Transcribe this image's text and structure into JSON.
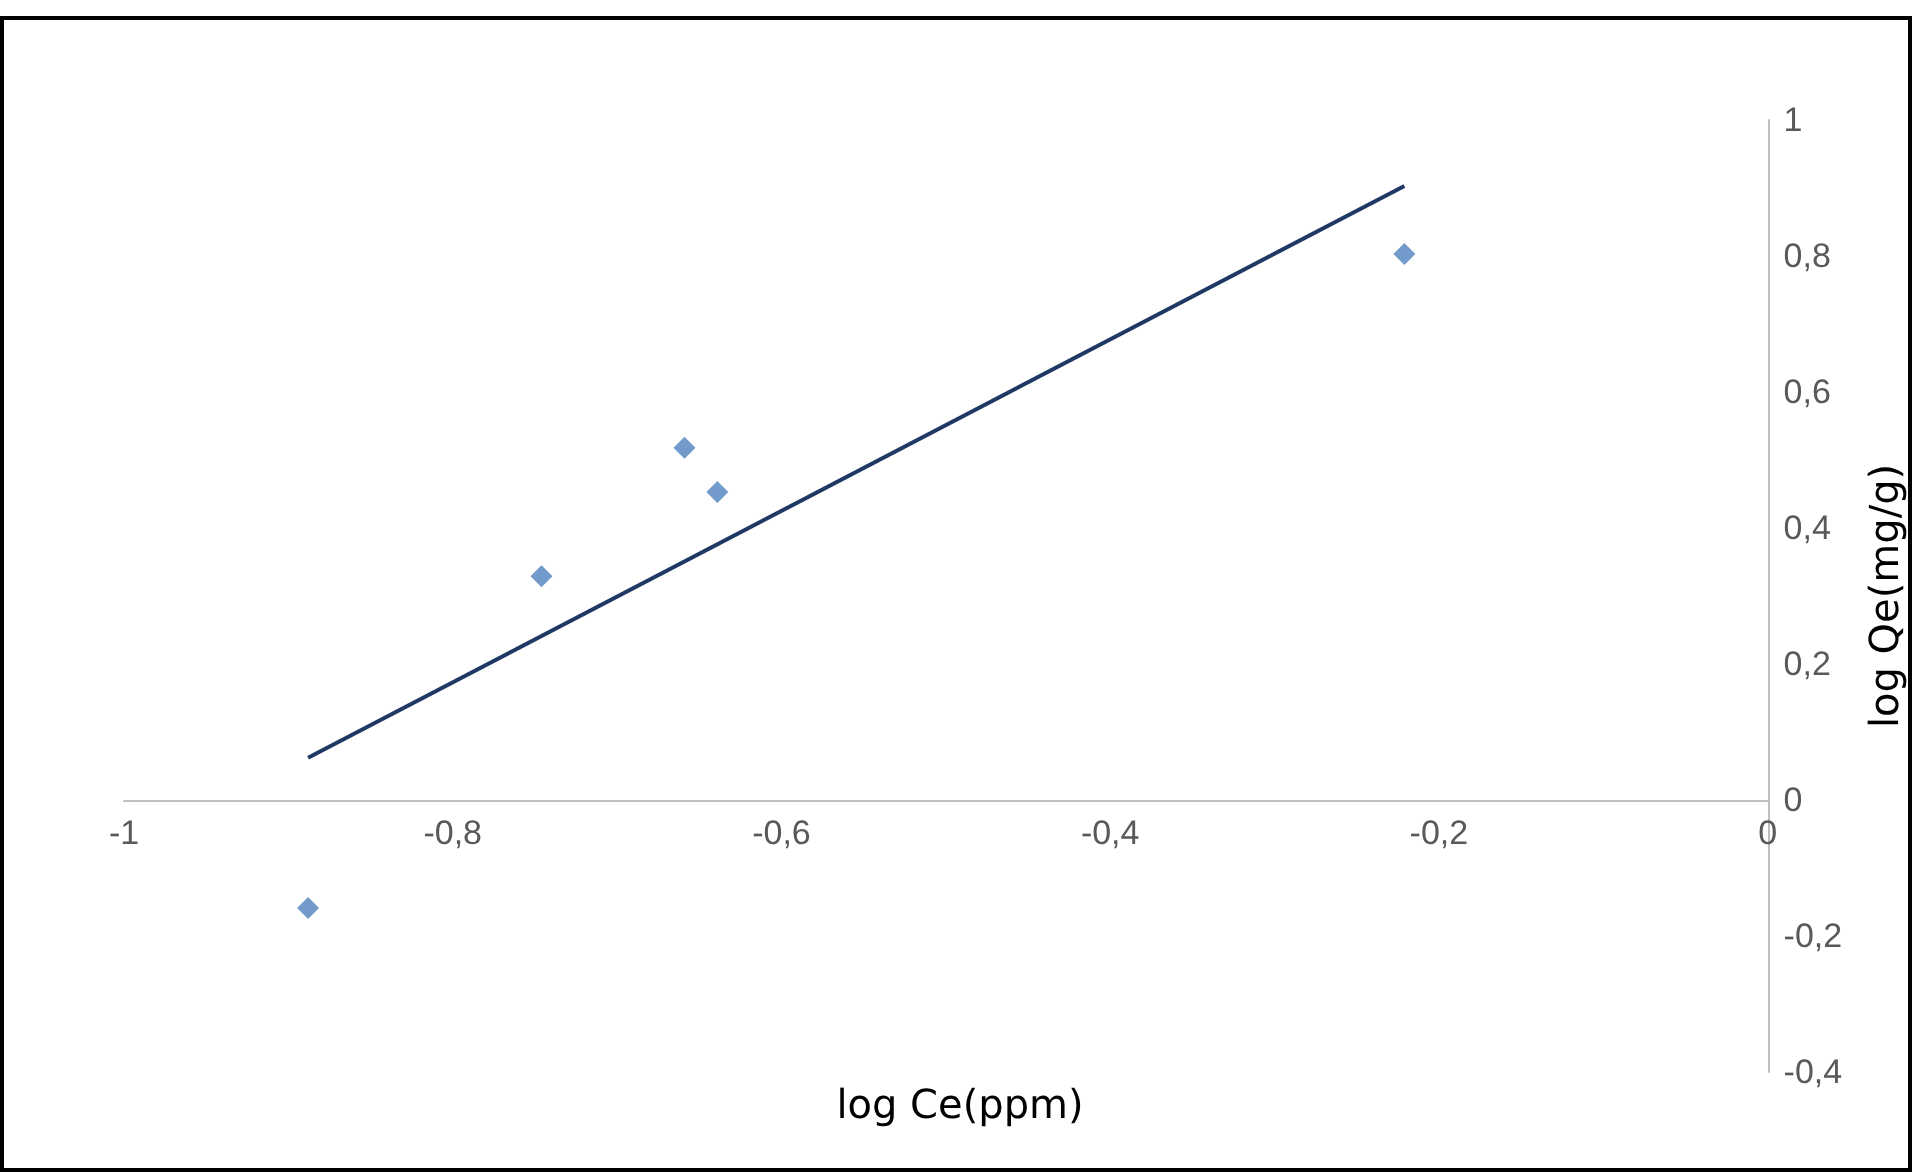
{
  "chart_data": {
    "type": "scatter",
    "xlabel": "log Ce(ppm)",
    "ylabel": "log Qe(mg/g)",
    "x": [
      -0.888,
      -0.746,
      -0.659,
      -0.639,
      -0.221
    ],
    "series": [
      {
        "color": "#4f81bd",
        "marker": "diamond",
        "values": [
          -0.159,
          0.329,
          0.518,
          0.453,
          0.803
        ]
      },
      {
        "type": "line",
        "color": "#1f3864",
        "marker": "none",
        "line_style": "solid",
        "x": [
          -0.888,
          -0.221
        ],
        "values": [
          0.062,
          0.903
        ]
      }
    ],
    "xlim": [
      -1,
      0
    ],
    "ylim": [
      -0.4,
      1
    ],
    "xticks": [
      -1,
      {
        "value": -0.8,
        "label": "-0,8"
      },
      {
        "value": -0.6,
        "label": "-0,6"
      },
      {
        "value": -0.4,
        "label": "-0,4"
      },
      {
        "value": -0.2,
        "label": "-0,2"
      },
      0
    ],
    "yticks": [
      {
        "value": -0.4,
        "label": "-0,4"
      },
      {
        "value": -0.2,
        "label": "-0,2"
      },
      0,
      {
        "value": 0.2,
        "label": "0,2"
      },
      {
        "value": 0.4,
        "label": "0,4"
      },
      {
        "value": 0.6,
        "label": "0,6"
      },
      {
        "value": 0.8,
        "label": "0,8"
      },
      1
    ]
  }
}
